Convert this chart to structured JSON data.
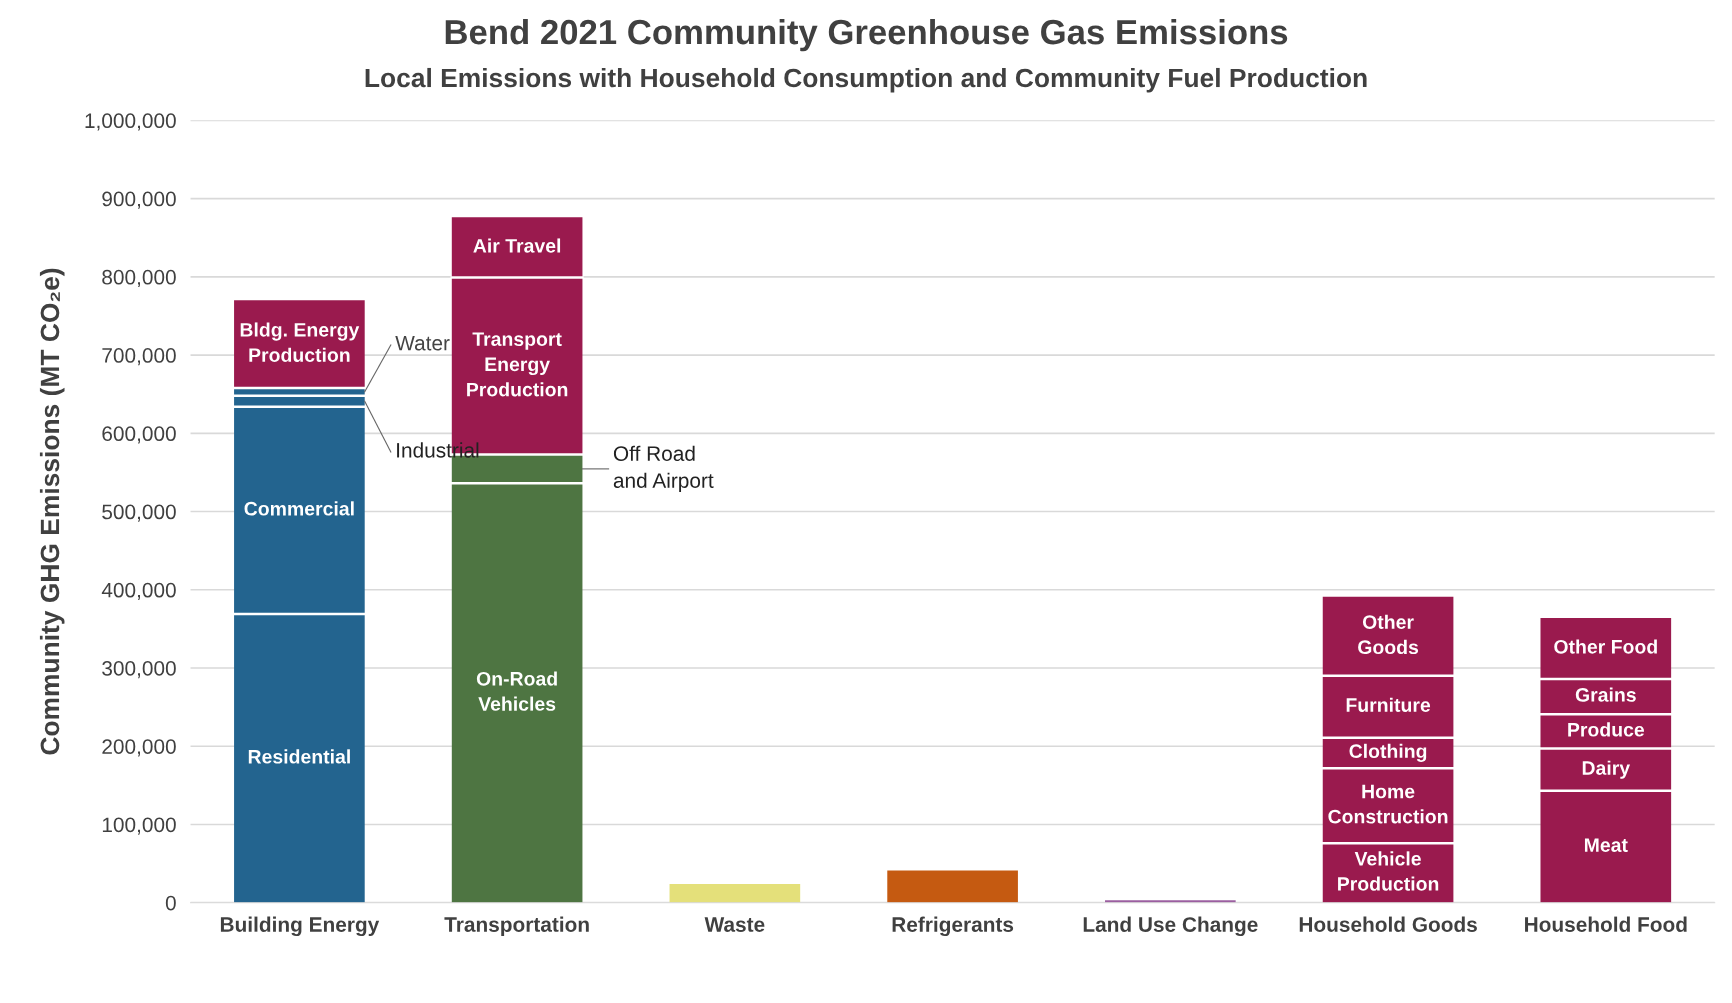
{
  "chart_data": {
    "type": "bar",
    "stacked": true,
    "title": "Bend 2021 Community Greenhouse Gas Emissions",
    "subtitle": "Local Emissions with Household Consumption and Community Fuel Production",
    "ylabel": "Community GHG Emissions (MT CO₂e)",
    "categories": [
      "Building Energy",
      "Transportation",
      "Waste",
      "Refrigerants",
      "Land Use Change",
      "Household Goods",
      "Household Food"
    ],
    "series": [
      {
        "name": "Residential",
        "color": "#23648f",
        "values": [
          369000,
          null,
          null,
          null,
          null,
          null,
          null
        ]
      },
      {
        "name": "Commercial",
        "color": "#23648f",
        "values": [
          265000,
          null,
          null,
          null,
          null,
          null,
          null
        ]
      },
      {
        "name": "Industrial",
        "color": "#23648f",
        "values": [
          14000,
          null,
          null,
          null,
          null,
          null,
          null
        ]
      },
      {
        "name": "Water",
        "color": "#23648f",
        "values": [
          10000,
          null,
          null,
          null,
          null,
          null,
          null
        ]
      },
      {
        "name": "Bldg. Energy\nProduction",
        "color": "#9a1a4e",
        "values": [
          112000,
          null,
          null,
          null,
          null,
          null,
          null
        ]
      },
      {
        "name": "On-Road\nVehicles",
        "color": "#4e7542",
        "values": [
          null,
          536000,
          null,
          null,
          null,
          null,
          null
        ]
      },
      {
        "name": "Off Road\nand Airport",
        "color": "#4e7542",
        "values": [
          null,
          37000,
          null,
          null,
          null,
          null,
          null
        ]
      },
      {
        "name": "Transport\nEnergy\nProduction",
        "color": "#9a1a4e",
        "values": [
          null,
          226000,
          null,
          null,
          null,
          null,
          null
        ]
      },
      {
        "name": "Air Travel",
        "color": "#9a1a4e",
        "values": [
          null,
          77000,
          null,
          null,
          null,
          null,
          null
        ]
      },
      {
        "colors": [
          "#ffffff",
          "#ffffff",
          "#e4e07a",
          "#c55a11",
          "#9b5fa0",
          "#ffffff",
          "#ffffff"
        ],
        "values": [
          null,
          null,
          24000,
          41000,
          3000,
          null,
          null
        ]
      },
      {
        "name": "Vehicle\nProduction",
        "color": "#9a1a4e",
        "values": [
          null,
          null,
          null,
          null,
          null,
          76000,
          null
        ]
      },
      {
        "name": "Meat",
        "color": "#9a1a4e",
        "values": [
          null,
          null,
          null,
          null,
          null,
          null,
          143000
        ]
      },
      {
        "name": "Home\nConstruction",
        "color": "#9a1a4e",
        "values": [
          null,
          null,
          null,
          null,
          null,
          96000,
          null
        ]
      },
      {
        "name": "Clothing",
        "color": "#9a1a4e",
        "values": [
          null,
          null,
          null,
          null,
          null,
          39000,
          null
        ]
      },
      {
        "name": "Furniture",
        "color": "#9a1a4e",
        "values": [
          null,
          null,
          null,
          null,
          null,
          79000,
          null
        ]
      },
      {
        "name": "Other\nGoods",
        "color": "#9a1a4e",
        "values": [
          null,
          null,
          null,
          null,
          null,
          101000,
          null
        ]
      },
      {
        "name": "Dairy",
        "color": "#9a1a4e",
        "values": [
          null,
          null,
          null,
          null,
          null,
          null,
          54000
        ]
      },
      {
        "name": "Produce",
        "color": "#9a1a4e",
        "values": [
          null,
          null,
          null,
          null,
          null,
          null,
          44000
        ]
      },
      {
        "name": "Grains",
        "color": "#9a1a4e",
        "values": [
          null,
          null,
          null,
          null,
          null,
          null,
          45000
        ]
      },
      {
        "name": "Other Food",
        "color": "#9a1a4e",
        "values": [
          null,
          null,
          null,
          null,
          null,
          null,
          78000
        ]
      }
    ],
    "ylim": [
      0,
      1000000
    ],
    "yticks": [
      {
        "value": 0,
        "label": "0"
      },
      {
        "value": 100000,
        "label": "100,000"
      },
      {
        "value": 200000,
        "label": "200,000"
      },
      {
        "value": 300000,
        "label": "300,000"
      },
      {
        "value": 400000,
        "label": "400,000"
      },
      {
        "value": 500000,
        "label": "500,000"
      },
      {
        "value": 600000,
        "label": "600,000"
      },
      {
        "value": 700000,
        "label": "700,000"
      },
      {
        "value": 800000,
        "label": "800,000"
      },
      {
        "value": 900000,
        "label": "900,000"
      },
      {
        "value": 1000000,
        "label": "1,000,000"
      }
    ],
    "grid": "y",
    "legend": false
  }
}
